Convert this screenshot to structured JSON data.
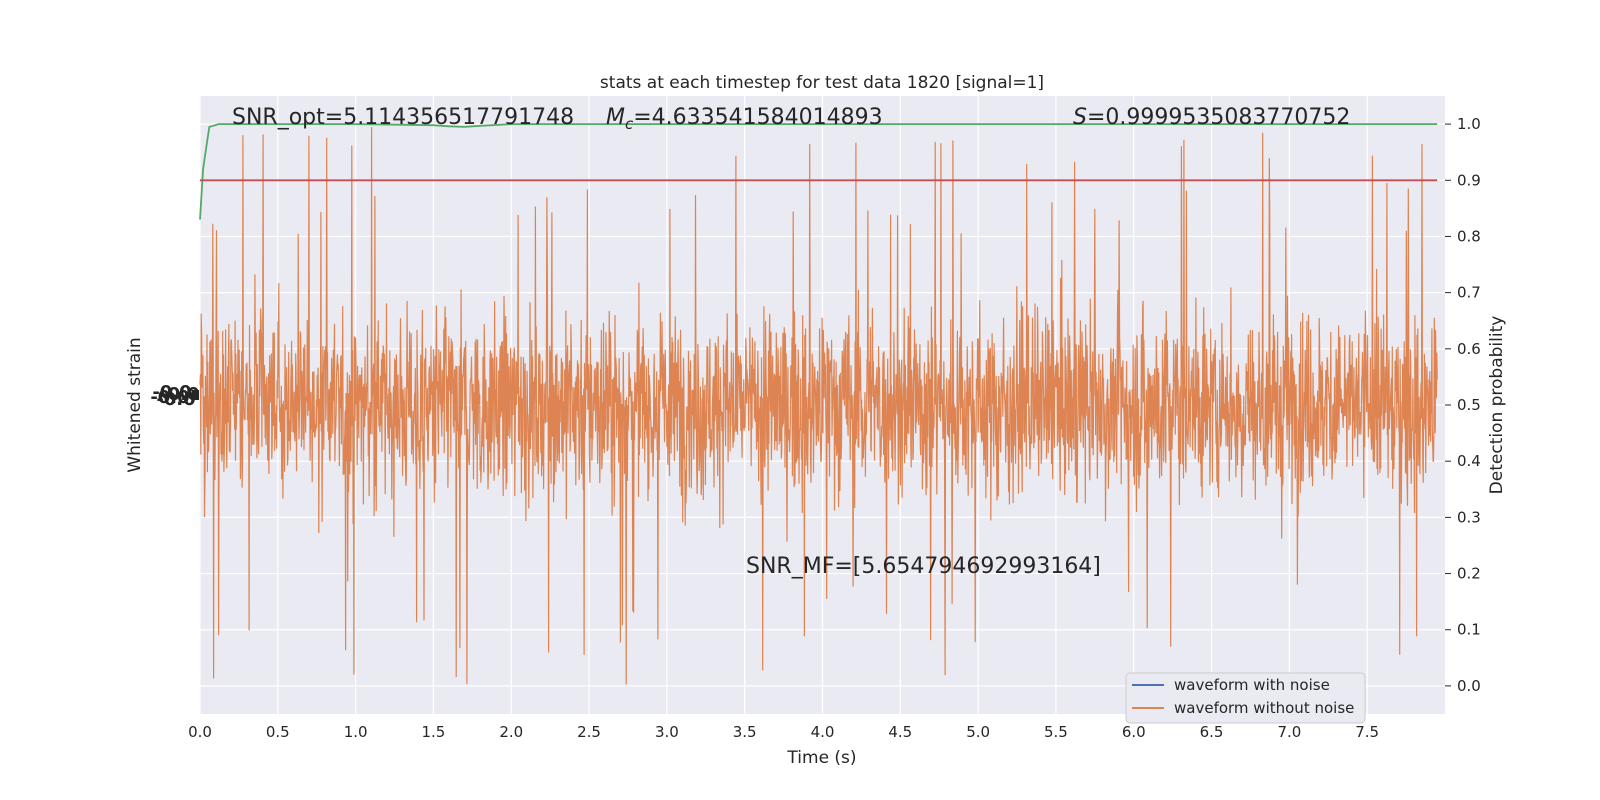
{
  "chart_data": {
    "type": "line",
    "title": "stats at each timestep for test data 1820 [signal=1]",
    "xlabel": "Time (s)",
    "ylabel_left": "Whitened strain",
    "ylabel_right": "Detection probability",
    "xlim": [
      0.0,
      8.0
    ],
    "ylim_right": [
      -0.05,
      1.05
    ],
    "x_ticks": [
      "0.0",
      "0.5",
      "1.0",
      "1.5",
      "2.0",
      "2.5",
      "3.0",
      "3.5",
      "4.0",
      "4.5",
      "5.0",
      "5.5",
      "6.0",
      "6.5",
      "7.0",
      "7.5"
    ],
    "y_ticks_right": [
      "0.0",
      "0.1",
      "0.2",
      "0.3",
      "0.4",
      "0.5",
      "0.6",
      "0.7",
      "0.8",
      "0.9",
      "1.0"
    ],
    "grid": true,
    "legend_position": "lower-right",
    "legend": [
      {
        "name": "waveform with noise",
        "color": "#4c72b0"
      },
      {
        "name": "waveform without noise",
        "color": "#dd8452"
      }
    ],
    "annotations": {
      "snr_opt": "SNR_opt=5.114356517791748",
      "mc_symbol": "M",
      "mc_sub": "c",
      "mc_value": "=4.633541584014893",
      "s_symbol": "S",
      "s_value": "=0.9999535083770752",
      "snr_mf": "SNR_MF=[5.654794692993164]"
    },
    "series": [
      {
        "name": "waveform without noise",
        "color": "#dd8452",
        "note": "dense noise-like signal spanning the full time range",
        "center": 0.5,
        "typical_spread": 0.2,
        "min": 0.0,
        "max": 1.0
      },
      {
        "color": "#55a868",
        "x": [
          0.0,
          0.02,
          0.06,
          0.12,
          0.2,
          0.5,
          1.0,
          1.5,
          1.6,
          1.7,
          1.8,
          2.0,
          3.0,
          4.0,
          5.0,
          6.0,
          7.0,
          7.95
        ],
        "y": [
          0.83,
          0.92,
          0.995,
          1.0,
          1.0,
          1.0,
          1.0,
          0.998,
          0.996,
          0.995,
          0.997,
          1.0,
          1.0,
          1.0,
          1.0,
          1.0,
          1.0,
          1.0
        ]
      },
      {
        "color": "#c44e52",
        "x": [
          0.0,
          7.95
        ],
        "y": [
          0.9,
          0.9
        ]
      }
    ],
    "left_axis_tick_labels_overlapping": "-0.0"
  },
  "colors": {
    "plot_background": "#eaeaf2",
    "grid": "#ffffff",
    "text": "#262626"
  }
}
